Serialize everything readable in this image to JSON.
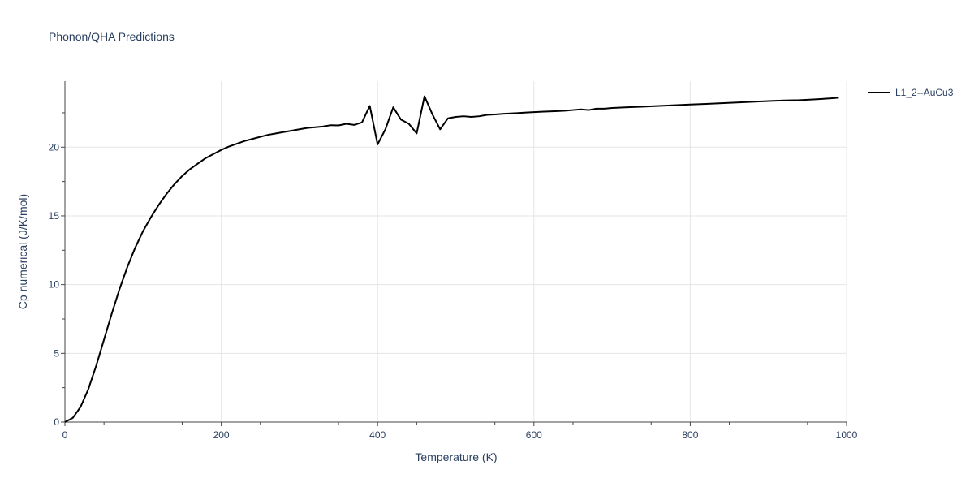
{
  "chart_data": {
    "type": "line",
    "title": "Phonon/QHA Predictions",
    "xlabel": "Temperature (K)",
    "ylabel": "Cp numerical (J/K/mol)",
    "xlim": [
      0,
      1000
    ],
    "ylim": [
      0,
      24.8
    ],
    "x_ticks": [
      "0",
      "200",
      "400",
      "600",
      "800",
      "1000"
    ],
    "y_ticks": [
      "0",
      "5",
      "10",
      "15",
      "20"
    ],
    "grid": true,
    "legend_position": "top-right",
    "series": [
      {
        "name": "L1_2--AuCu3",
        "color": "#000000",
        "x": [
          0,
          10,
          20,
          30,
          40,
          50,
          60,
          70,
          80,
          90,
          100,
          110,
          120,
          130,
          140,
          150,
          160,
          170,
          180,
          190,
          200,
          210,
          220,
          230,
          240,
          250,
          260,
          270,
          280,
          290,
          300,
          310,
          320,
          330,
          340,
          350,
          360,
          370,
          380,
          390,
          400,
          410,
          420,
          430,
          440,
          450,
          460,
          470,
          480,
          490,
          500,
          510,
          520,
          530,
          540,
          550,
          560,
          570,
          580,
          590,
          600,
          610,
          620,
          630,
          640,
          650,
          660,
          670,
          680,
          690,
          700,
          720,
          740,
          760,
          780,
          800,
          820,
          840,
          860,
          880,
          900,
          920,
          940,
          950,
          960,
          980,
          990
        ],
        "y": [
          0,
          0.3,
          1.1,
          2.4,
          4.1,
          6.0,
          7.9,
          9.7,
          11.3,
          12.7,
          13.9,
          14.9,
          15.8,
          16.6,
          17.3,
          17.9,
          18.4,
          18.8,
          19.2,
          19.5,
          19.8,
          20.05,
          20.25,
          20.45,
          20.6,
          20.75,
          20.9,
          21.0,
          21.1,
          21.2,
          21.3,
          21.4,
          21.45,
          21.5,
          21.6,
          21.58,
          21.7,
          21.62,
          21.8,
          23.0,
          20.2,
          21.3,
          22.9,
          22.0,
          21.7,
          21.0,
          23.7,
          22.4,
          21.3,
          22.1,
          22.2,
          22.25,
          22.2,
          22.25,
          22.35,
          22.38,
          22.42,
          22.45,
          22.48,
          22.52,
          22.55,
          22.58,
          22.6,
          22.62,
          22.65,
          22.7,
          22.75,
          22.7,
          22.8,
          22.8,
          22.85,
          22.9,
          22.95,
          23.0,
          23.05,
          23.1,
          23.15,
          23.2,
          23.25,
          23.3,
          23.35,
          23.4,
          23.42,
          23.45,
          23.48,
          23.55,
          23.6
        ]
      }
    ]
  }
}
